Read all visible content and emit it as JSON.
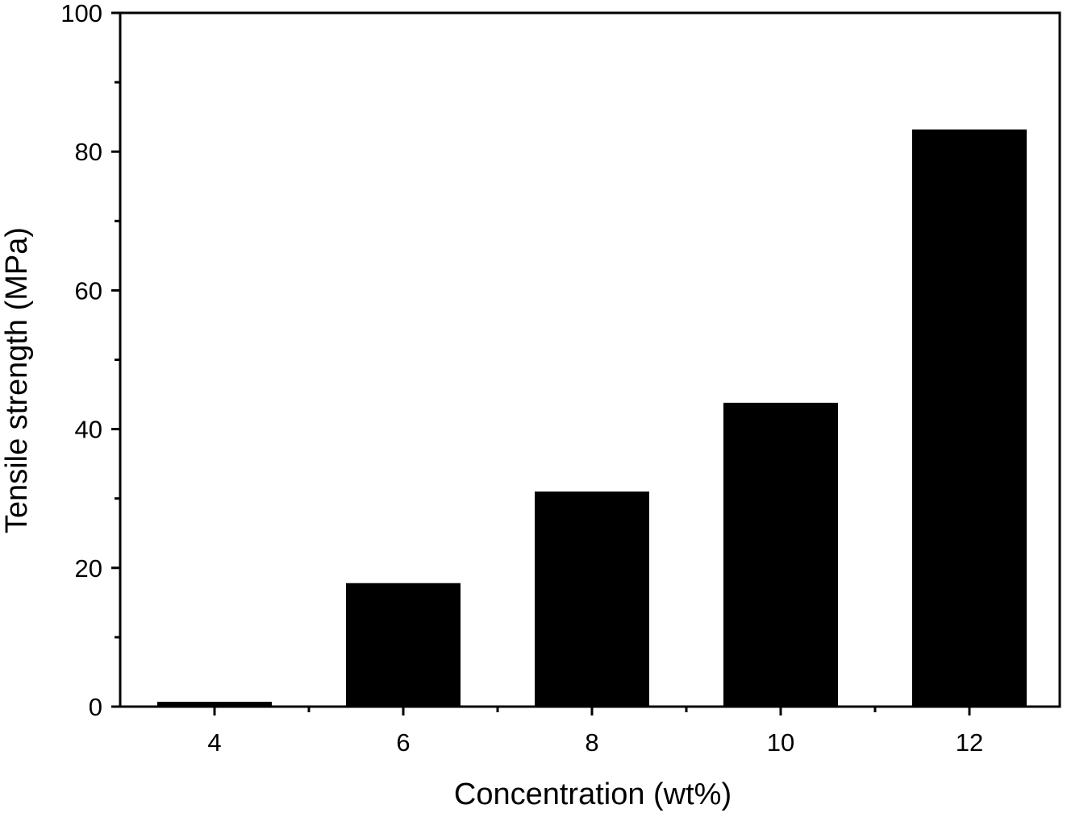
{
  "chart_data": {
    "type": "bar",
    "categories": [
      "4",
      "6",
      "8",
      "10",
      "12"
    ],
    "values": [
      0.7,
      17.8,
      31,
      43.8,
      83.2
    ],
    "xlabel": "Concentration (wt%)",
    "ylabel": "Tensile strength (MPa)",
    "ylim": [
      0,
      100
    ],
    "yticks": [
      "0",
      "20",
      "40",
      "60",
      "80",
      "100"
    ],
    "grid": false,
    "bar_color": "#000000",
    "axis_color": "#000000",
    "background": "#ffffff"
  }
}
